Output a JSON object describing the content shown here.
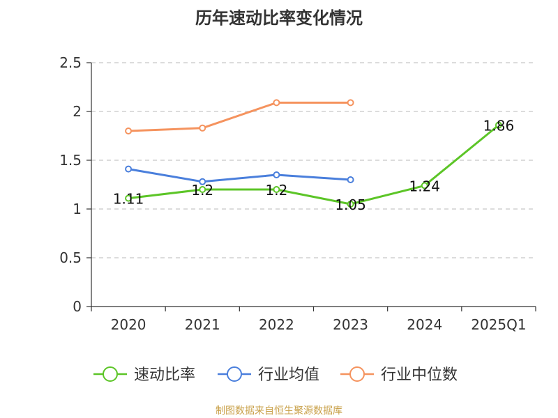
{
  "chart_data": {
    "type": "line",
    "title": "历年速动比率变化情况",
    "categories": [
      "2020",
      "2021",
      "2022",
      "2023",
      "2024",
      "2025Q1"
    ],
    "ylim": [
      0,
      2.5
    ],
    "yticks": [
      "0",
      "0.5",
      "1",
      "1.5",
      "2",
      "2.5"
    ],
    "grid": true,
    "legend_position": "bottom",
    "series": [
      {
        "name": "速动比率",
        "color": "#5cc527",
        "values": [
          1.11,
          1.2,
          1.2,
          1.05,
          1.24,
          1.86
        ],
        "labels": [
          "1.11",
          "1.2",
          "1.2",
          "1.05",
          "1.24",
          "1.86"
        ]
      },
      {
        "name": "行业均值",
        "color": "#4a7fdc",
        "values": [
          1.41,
          1.28,
          1.35,
          1.3,
          null,
          null
        ]
      },
      {
        "name": "行业中位数",
        "color": "#f5935e",
        "values": [
          1.8,
          1.83,
          2.09,
          2.09,
          null,
          null
        ]
      }
    ]
  },
  "footer": {
    "source": "制图数据来自恒生聚源数据库"
  }
}
